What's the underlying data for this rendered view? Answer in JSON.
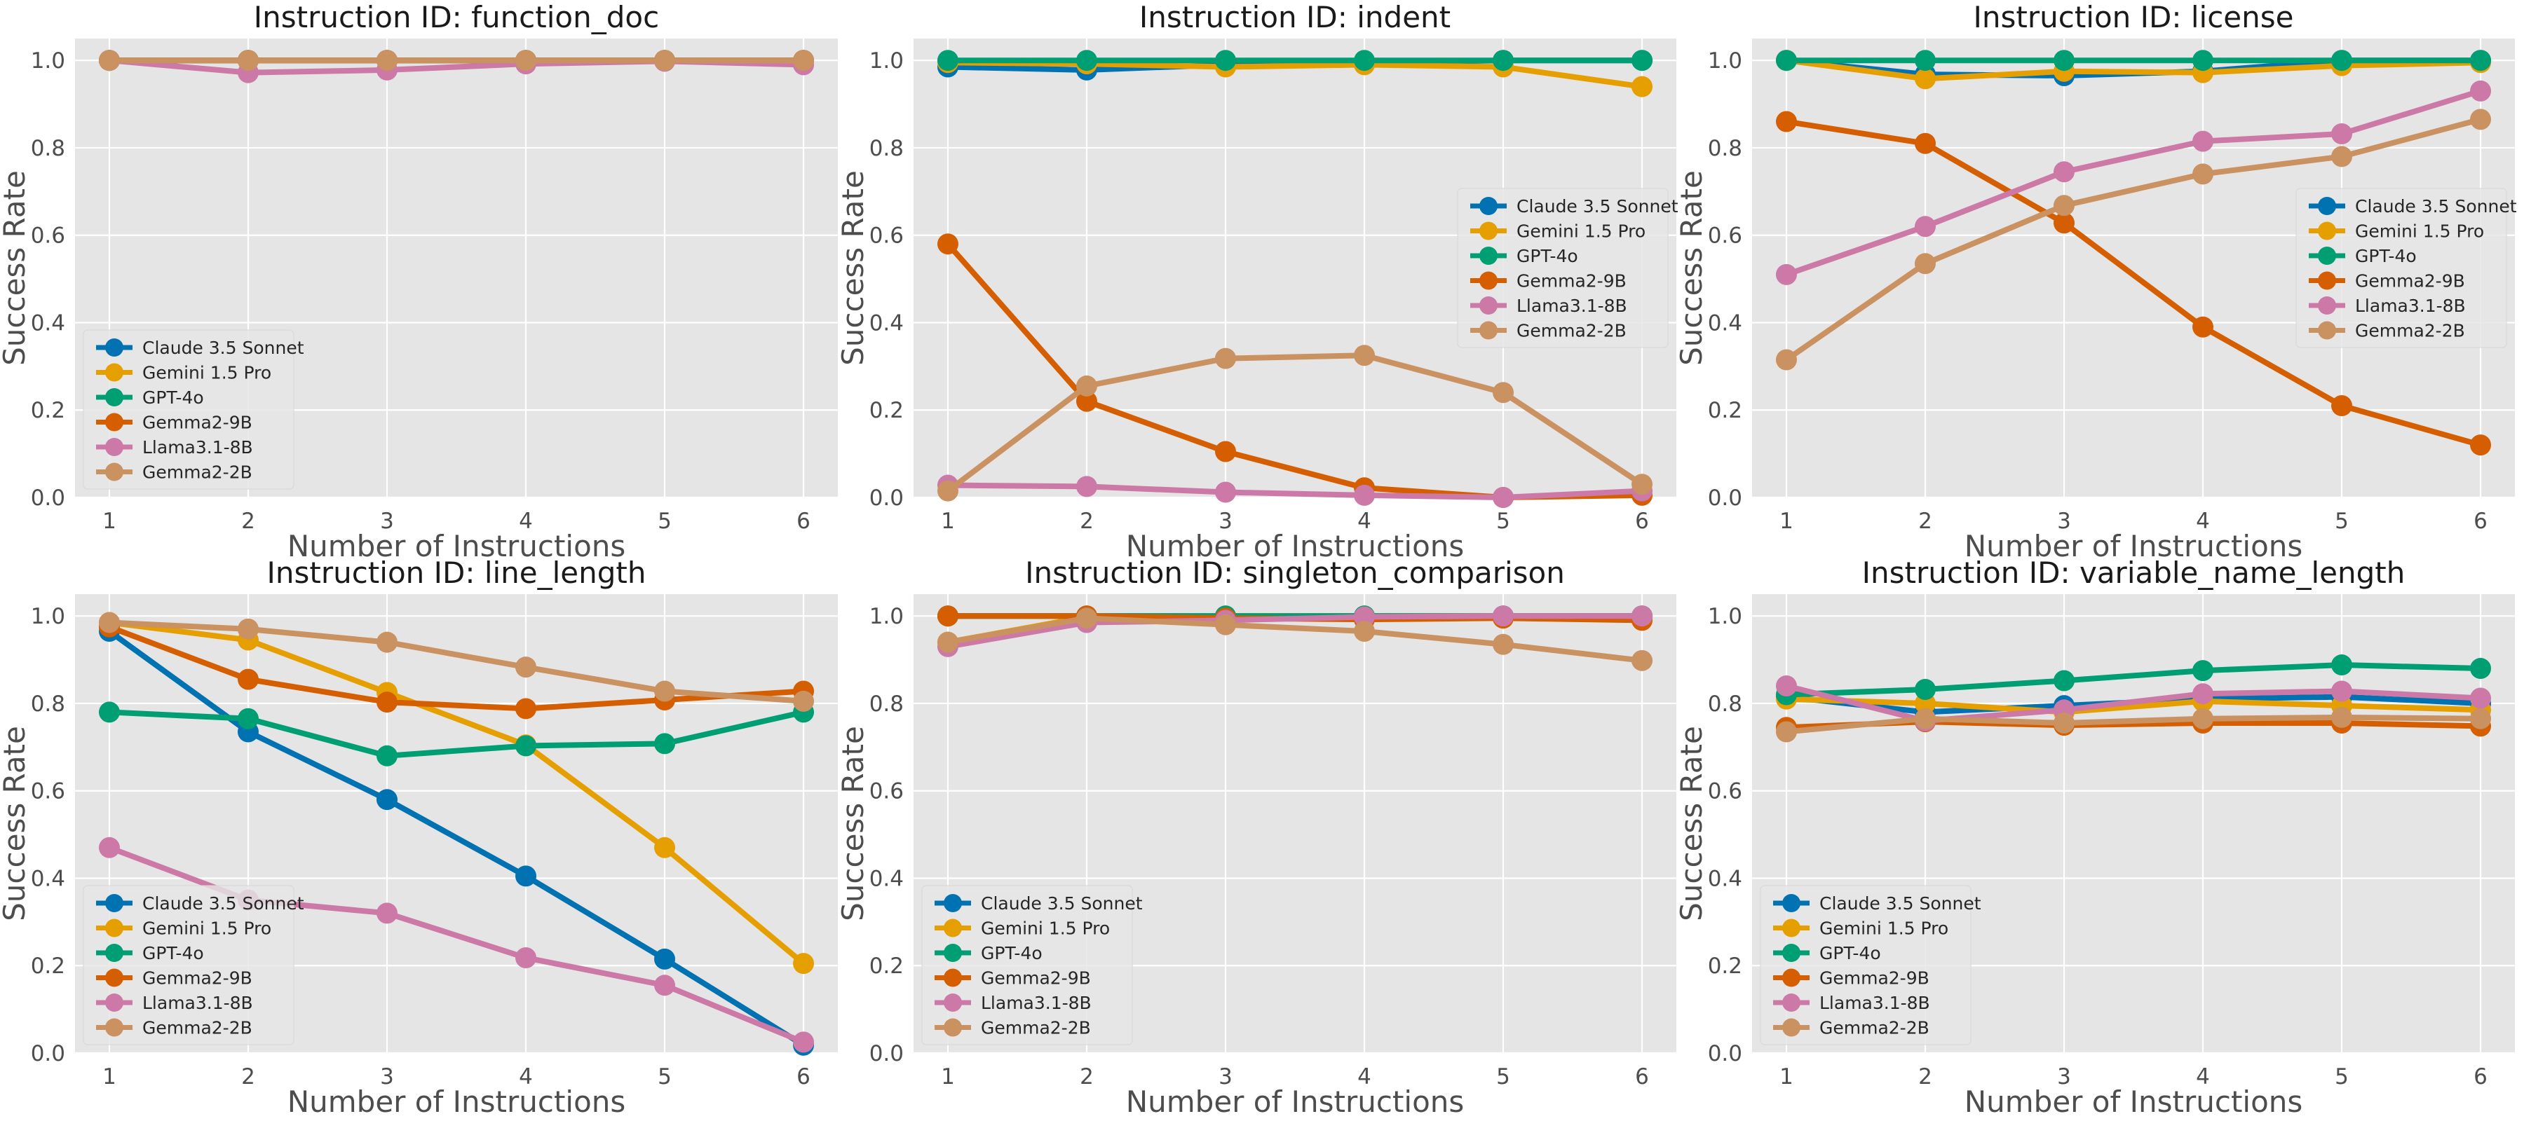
{
  "figure": {
    "shared": {
      "xlabel": "Number of Instructions",
      "ylabel": "Success Rate",
      "x": [
        1,
        2,
        3,
        4,
        5,
        6
      ],
      "xticks": [
        "1",
        "2",
        "3",
        "4",
        "5",
        "6"
      ],
      "yticks": [
        "0.0",
        "0.2",
        "0.4",
        "0.6",
        "0.8",
        "1.0"
      ],
      "ylim": [
        0,
        1.05
      ]
    },
    "models": [
      {
        "name": "Claude 3.5 Sonnet",
        "color": "#0072b2"
      },
      {
        "name": "Gemini 1.5 Pro",
        "color": "#e69f00"
      },
      {
        "name": "GPT-4o",
        "color": "#009e73"
      },
      {
        "name": "Gemma2-9B",
        "color": "#d55e00"
      },
      {
        "name": "Llama3.1-8B",
        "color": "#cc79a7"
      },
      {
        "name": "Gemma2-2B",
        "color": "#ca9161"
      }
    ]
  },
  "chart_data": [
    {
      "type": "line",
      "title": "Instruction ID: function_doc",
      "legend_position": "lower-left",
      "series": [
        {
          "name": "Claude 3.5 Sonnet",
          "values": [
            1.0,
            1.0,
            1.0,
            1.0,
            1.0,
            1.0
          ]
        },
        {
          "name": "Gemini 1.5 Pro",
          "values": [
            1.0,
            1.0,
            1.0,
            1.0,
            1.0,
            1.0
          ]
        },
        {
          "name": "GPT-4o",
          "values": [
            1.0,
            1.0,
            1.0,
            1.0,
            1.0,
            1.0
          ]
        },
        {
          "name": "Gemma2-9B",
          "values": [
            1.0,
            1.0,
            1.0,
            1.0,
            1.0,
            1.0
          ]
        },
        {
          "name": "Llama3.1-8B",
          "values": [
            1.0,
            0.972,
            0.978,
            0.992,
            0.998,
            0.99
          ]
        },
        {
          "name": "Gemma2-2B",
          "values": [
            1.0,
            1.0,
            1.0,
            1.0,
            1.0,
            1.0
          ]
        }
      ]
    },
    {
      "type": "line",
      "title": "Instruction ID: indent",
      "legend_position": "center-right",
      "series": [
        {
          "name": "Claude 3.5 Sonnet",
          "values": [
            0.985,
            0.978,
            0.99,
            0.995,
            1.0,
            1.0
          ]
        },
        {
          "name": "Gemini 1.5 Pro",
          "values": [
            0.995,
            0.992,
            0.985,
            0.99,
            0.985,
            0.94
          ]
        },
        {
          "name": "GPT-4o",
          "values": [
            1.0,
            1.0,
            1.0,
            1.0,
            1.0,
            1.0
          ]
        },
        {
          "name": "Gemma2-9B",
          "values": [
            0.58,
            0.22,
            0.105,
            0.022,
            0.0,
            0.005
          ]
        },
        {
          "name": "Llama3.1-8B",
          "values": [
            0.028,
            0.025,
            0.012,
            0.005,
            0.0,
            0.015
          ]
        },
        {
          "name": "Gemma2-2B",
          "values": [
            0.015,
            0.255,
            0.318,
            0.325,
            0.24,
            0.03
          ]
        }
      ]
    },
    {
      "type": "line",
      "title": "Instruction ID: license",
      "legend_position": "center-right",
      "series": [
        {
          "name": "Claude 3.5 Sonnet",
          "values": [
            1.0,
            0.968,
            0.965,
            0.975,
            1.0,
            1.0
          ]
        },
        {
          "name": "Gemini 1.5 Pro",
          "values": [
            1.0,
            0.958,
            0.975,
            0.972,
            0.988,
            0.995
          ]
        },
        {
          "name": "GPT-4o",
          "values": [
            1.0,
            1.0,
            1.0,
            1.0,
            1.0,
            1.0
          ]
        },
        {
          "name": "Gemma2-9B",
          "values": [
            0.86,
            0.81,
            0.628,
            0.39,
            0.21,
            0.12
          ]
        },
        {
          "name": "Llama3.1-8B",
          "values": [
            0.51,
            0.62,
            0.745,
            0.815,
            0.832,
            0.93
          ]
        },
        {
          "name": "Gemma2-2B",
          "values": [
            0.315,
            0.535,
            0.668,
            0.74,
            0.78,
            0.865
          ]
        }
      ]
    },
    {
      "type": "line",
      "title": "Instruction ID: line_length",
      "legend_position": "lower-left",
      "series": [
        {
          "name": "Claude 3.5 Sonnet",
          "values": [
            0.965,
            0.735,
            0.58,
            0.405,
            0.215,
            0.018
          ]
        },
        {
          "name": "Gemini 1.5 Pro",
          "values": [
            0.985,
            0.945,
            0.825,
            0.705,
            0.47,
            0.205
          ]
        },
        {
          "name": "GPT-4o",
          "values": [
            0.78,
            0.765,
            0.68,
            0.703,
            0.708,
            0.78
          ]
        },
        {
          "name": "Gemma2-9B",
          "values": [
            0.975,
            0.855,
            0.803,
            0.788,
            0.808,
            0.828
          ]
        },
        {
          "name": "Llama3.1-8B",
          "values": [
            0.47,
            0.35,
            0.32,
            0.218,
            0.155,
            0.025
          ]
        },
        {
          "name": "Gemma2-2B",
          "values": [
            0.985,
            0.97,
            0.94,
            0.883,
            0.828,
            0.805
          ]
        }
      ]
    },
    {
      "type": "line",
      "title": "Instruction ID: singleton_comparison",
      "legend_position": "lower-left",
      "series": [
        {
          "name": "Claude 3.5 Sonnet",
          "values": [
            1.0,
            1.0,
            1.0,
            1.0,
            1.0,
            1.0
          ]
        },
        {
          "name": "Gemini 1.5 Pro",
          "values": [
            0.94,
            0.998,
            1.0,
            1.0,
            1.0,
            1.0
          ]
        },
        {
          "name": "GPT-4o",
          "values": [
            1.0,
            1.0,
            1.0,
            1.0,
            1.0,
            1.0
          ]
        },
        {
          "name": "Gemma2-9B",
          "values": [
            1.0,
            1.0,
            0.995,
            0.992,
            0.995,
            0.99
          ]
        },
        {
          "name": "Llama3.1-8B",
          "values": [
            0.93,
            0.985,
            0.99,
            0.998,
            1.0,
            1.0
          ]
        },
        {
          "name": "Gemma2-2B",
          "values": [
            0.94,
            0.995,
            0.98,
            0.965,
            0.935,
            0.898
          ]
        }
      ]
    },
    {
      "type": "line",
      "title": "Instruction ID: variable_name_length",
      "legend_position": "lower-left",
      "series": [
        {
          "name": "Claude 3.5 Sonnet",
          "values": [
            0.815,
            0.78,
            0.795,
            0.81,
            0.815,
            0.8
          ]
        },
        {
          "name": "Gemini 1.5 Pro",
          "values": [
            0.81,
            0.8,
            0.78,
            0.805,
            0.795,
            0.785
          ]
        },
        {
          "name": "GPT-4o",
          "values": [
            0.82,
            0.832,
            0.852,
            0.875,
            0.888,
            0.88
          ]
        },
        {
          "name": "Gemma2-9B",
          "values": [
            0.745,
            0.758,
            0.75,
            0.755,
            0.755,
            0.748
          ]
        },
        {
          "name": "Llama3.1-8B",
          "values": [
            0.84,
            0.76,
            0.785,
            0.822,
            0.828,
            0.812
          ]
        },
        {
          "name": "Gemma2-2B",
          "values": [
            0.735,
            0.765,
            0.755,
            0.765,
            0.768,
            0.765
          ]
        }
      ]
    }
  ]
}
